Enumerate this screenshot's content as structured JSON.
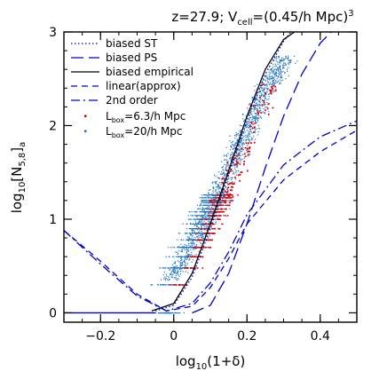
{
  "chart_data": {
    "type": "scatter",
    "title": "z=27.9; V_cell=(0.45/h Mpc)^3",
    "title_parts": {
      "pre": "z=27.9; V",
      "sub": "cell",
      "mid": "=(0.45/h Mpc)",
      "sup": "3"
    },
    "xlabel_parts": {
      "pre": "log",
      "sub": "10",
      "post": "(1+δ)"
    },
    "ylabel_parts": {
      "pre": "log",
      "sub1": "10",
      "mid": "[N",
      "sub2": "5,8",
      "post": "]",
      "sub3": "a"
    },
    "xlim": [
      -0.3,
      0.5
    ],
    "ylim": [
      -0.1,
      3.0
    ],
    "xticks": [
      -0.2,
      0,
      0.2,
      0.4
    ],
    "xtick_labels": [
      "−0.2",
      "0",
      "0.2",
      "0.4"
    ],
    "yticks": [
      0,
      1,
      2,
      3
    ],
    "ytick_labels": [
      "0",
      "1",
      "2",
      "3"
    ],
    "legend_position": "top-left",
    "colors": {
      "model": "#0000cc",
      "empirical": "#000000",
      "small_box": "#dd0000",
      "large_box": "#1f77c4"
    },
    "series": [
      {
        "name": "biased ST",
        "style": "dotted",
        "x": [
          -0.05,
          0.0,
          0.05,
          0.1,
          0.15,
          0.2,
          0.25,
          0.3,
          0.32
        ],
        "y": [
          0.02,
          0.08,
          0.38,
          0.9,
          1.48,
          2.05,
          2.55,
          2.9,
          3.0
        ]
      },
      {
        "name": "biased PS",
        "style": "long-dash",
        "x": [
          0.05,
          0.1,
          0.15,
          0.2,
          0.25,
          0.3,
          0.35,
          0.4,
          0.43
        ],
        "y": [
          0.0,
          0.08,
          0.42,
          0.95,
          1.55,
          2.1,
          2.55,
          2.88,
          3.0
        ]
      },
      {
        "name": "biased empirical",
        "style": "solid",
        "x": [
          -0.06,
          0.0,
          0.05,
          0.1,
          0.15,
          0.2,
          0.25,
          0.3,
          0.33
        ],
        "y": [
          0.02,
          0.1,
          0.42,
          0.95,
          1.52,
          2.1,
          2.6,
          2.92,
          3.0
        ]
      },
      {
        "name": "linear(approx)",
        "style": "dashed",
        "x": [
          -0.3,
          -0.2,
          -0.1,
          -0.02,
          0.05,
          0.1,
          0.15,
          0.2,
          0.3,
          0.4,
          0.5
        ],
        "y": [
          0.88,
          0.55,
          0.2,
          0.02,
          0.07,
          0.27,
          0.58,
          0.95,
          1.42,
          1.72,
          1.95
        ]
      },
      {
        "name": "2nd order",
        "style": "dash-dot",
        "x": [
          -0.3,
          -0.2,
          -0.1,
          -0.02,
          0.05,
          0.1,
          0.15,
          0.2,
          0.3,
          0.4,
          0.5
        ],
        "y": [
          0.88,
          0.52,
          0.18,
          0.02,
          0.1,
          0.32,
          0.65,
          1.05,
          1.58,
          1.88,
          2.05
        ]
      }
    ],
    "scatter_legend": [
      {
        "name_parts": {
          "pre": "L",
          "sub": "box",
          "post": "=6.3/h Mpc"
        },
        "marker": "small_box"
      },
      {
        "name_parts": {
          "pre": "L",
          "sub": "box",
          "post": "=20/h Mpc"
        },
        "marker": "large_box"
      }
    ],
    "scatter": {
      "large_box": {
        "trend_x": [
          -0.02,
          0.06,
          0.12,
          0.18,
          0.24,
          0.3
        ],
        "trend_y": [
          0.3,
          0.8,
          1.3,
          1.8,
          2.3,
          2.7
        ],
        "x_spread": 0.045,
        "start_y": 0.35
      },
      "small_box": {
        "trend_x": [
          0.0,
          0.08,
          0.14,
          0.2,
          0.26
        ],
        "trend_y": [
          0.2,
          0.75,
          1.3,
          1.85,
          2.4
        ],
        "x_spread": 0.035,
        "start_y": 0.2
      },
      "discrete_levels_y": [
        0.0,
        0.3,
        0.48,
        0.6,
        0.7,
        0.78,
        0.85,
        0.9,
        0.95,
        1.0,
        1.04,
        1.08,
        1.11,
        1.15,
        1.18,
        1.2,
        1.23,
        1.26
      ]
    }
  }
}
